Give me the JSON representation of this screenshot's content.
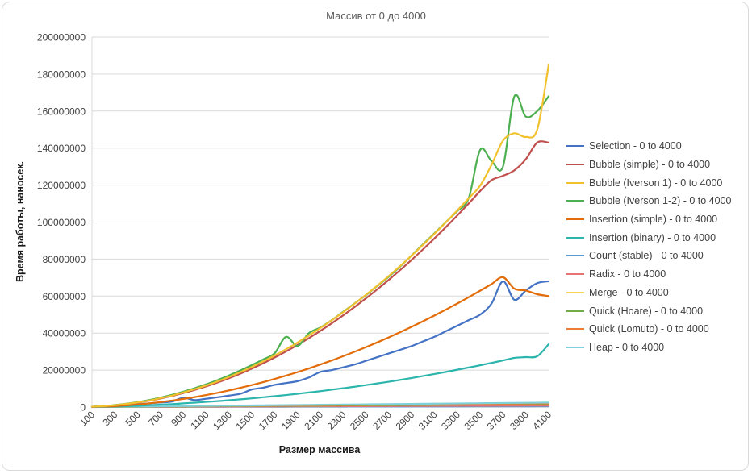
{
  "chart_data": {
    "type": "line",
    "title": "Массив от 0 до 4000",
    "xlabel": "Размер массива",
    "ylabel": "Время работы, наносек.",
    "ylim": [
      0,
      200000000
    ],
    "y_ticks": [
      "0",
      "20000000",
      "40000000",
      "60000000",
      "80000000",
      "100000000",
      "120000000",
      "140000000",
      "160000000",
      "180000000",
      "200000000"
    ],
    "x_ticks": [
      "100",
      "300",
      "500",
      "700",
      "900",
      "1100",
      "1300",
      "1500",
      "1700",
      "1900",
      "2100",
      "2300",
      "2500",
      "2700",
      "2900",
      "3100",
      "3300",
      "3500",
      "3700",
      "3900",
      "4100"
    ],
    "x": [
      100,
      200,
      300,
      400,
      500,
      600,
      700,
      800,
      900,
      1000,
      1100,
      1200,
      1300,
      1400,
      1500,
      1600,
      1700,
      1800,
      1900,
      2000,
      2100,
      2200,
      2300,
      2400,
      2500,
      2600,
      2700,
      2800,
      2900,
      3000,
      3100,
      3200,
      3300,
      3400,
      3500,
      3600,
      3700,
      3800,
      3900,
      4000,
      4100
    ],
    "legend_position": "right",
    "grid": true,
    "series": [
      {
        "name": "Selection - 0 to 4000",
        "color": "#4472c4",
        "values": [
          100000,
          300000,
          700000,
          1100000,
          1500000,
          2000000,
          2500000,
          3000000,
          5000000,
          3800000,
          4500000,
          5300000,
          6200000,
          7200000,
          9500000,
          10500000,
          12000000,
          13000000,
          14000000,
          16000000,
          19000000,
          20000000,
          21500000,
          23000000,
          25000000,
          27000000,
          29000000,
          31000000,
          33000000,
          35500000,
          38000000,
          41000000,
          44000000,
          47000000,
          50000000,
          56000000,
          68000000,
          58000000,
          63000000,
          67000000,
          68000000
        ]
      },
      {
        "name": "Bubble (simple) - 0 to 4000",
        "color": "#c0504d",
        "values": [
          200000,
          500000,
          1000000,
          1600000,
          2400000,
          3400000,
          4600000,
          6000000,
          7600000,
          9300000,
          11200000,
          13300000,
          15600000,
          18100000,
          20800000,
          23700000,
          26800000,
          30100000,
          33600000,
          37300000,
          41200000,
          45300000,
          49600000,
          54100000,
          58800000,
          63700000,
          68800000,
          74100000,
          79600000,
          85300000,
          91200000,
          97300000,
          103600000,
          110100000,
          116800000,
          122700000,
          125000000,
          128000000,
          134000000,
          143000000,
          143000000
        ]
      },
      {
        "name": "Bubble (Iverson 1) - 0 to 4000",
        "color": "#f2c12e",
        "values": [
          200000,
          500000,
          1000000,
          1700000,
          2500000,
          3500000,
          4800000,
          6200000,
          7900000,
          9700000,
          11700000,
          13900000,
          16300000,
          18900000,
          21700000,
          24700000,
          27900000,
          31300000,
          34900000,
          38700000,
          42700000,
          46900000,
          51300000,
          55900000,
          60700000,
          65700000,
          70900000,
          76300000,
          81900000,
          87700000,
          93700000,
          99900000,
          106300000,
          112900000,
          119700000,
          131000000,
          144000000,
          148000000,
          146000000,
          150000000,
          185000000
        ]
      },
      {
        "name": "Bubble (Iverson 1-2) - 0 to 4000",
        "color": "#4caf50",
        "values": [
          200000,
          500000,
          1100000,
          1800000,
          2700000,
          3800000,
          5100000,
          6600000,
          8300000,
          10200000,
          12300000,
          14600000,
          17100000,
          19800000,
          22700000,
          25800000,
          29100000,
          38000000,
          33000000,
          40000000,
          43000000,
          47000000,
          51500000,
          56000000,
          60500000,
          65500000,
          70500000,
          76000000,
          82000000,
          88000000,
          94000000,
          100000000,
          106000000,
          113000000,
          139000000,
          133000000,
          130000000,
          168000000,
          157000000,
          160000000,
          168000000
        ]
      },
      {
        "name": "Insertion (simple) - 0 to 4000",
        "color": "#e36c09",
        "values": [
          100000,
          250000,
          500000,
          900000,
          1400000,
          2000000,
          2700000,
          3500000,
          4400000,
          5400000,
          6500000,
          7700000,
          9000000,
          10400000,
          11900000,
          13500000,
          15200000,
          17000000,
          18900000,
          20900000,
          23000000,
          25200000,
          27500000,
          29900000,
          32400000,
          35000000,
          37700000,
          40500000,
          43400000,
          46400000,
          49500000,
          52700000,
          56000000,
          59400000,
          62900000,
          66500000,
          70200000,
          64000000,
          63000000,
          61000000,
          60000000
        ]
      },
      {
        "name": "Insertion (binary) - 0 to 4000",
        "color": "#2bb5ad",
        "values": [
          50000,
          150000,
          300000,
          500000,
          700000,
          1000000,
          1300000,
          1600000,
          2000000,
          2400000,
          2800000,
          3200000,
          3700000,
          4200000,
          4700000,
          5300000,
          5900000,
          6500000,
          7200000,
          7900000,
          8600000,
          9400000,
          10200000,
          11000000,
          11900000,
          12800000,
          13700000,
          14700000,
          15700000,
          16800000,
          17900000,
          19000000,
          20200000,
          21400000,
          22600000,
          23900000,
          25200000,
          26600000,
          27000000,
          27500000,
          34000000
        ]
      },
      {
        "name": "Count (stable) - 0 to 4000",
        "color": "#5b9bd5",
        "values": [
          10000,
          20000,
          30000,
          40000,
          50000,
          60000,
          70000,
          80000,
          90000,
          100000,
          110000,
          120000,
          130000,
          140000,
          150000,
          160000,
          170000,
          180000,
          190000,
          200000,
          210000,
          220000,
          230000,
          240000,
          250000,
          260000,
          270000,
          280000,
          290000,
          300000,
          310000,
          320000,
          330000,
          340000,
          350000,
          360000,
          370000,
          380000,
          390000,
          400000,
          410000
        ]
      },
      {
        "name": "Radix - 0 to 4000",
        "color": "#e57373",
        "values": [
          20000,
          40000,
          60000,
          80000,
          100000,
          120000,
          140000,
          160000,
          180000,
          200000,
          220000,
          240000,
          260000,
          280000,
          300000,
          320000,
          340000,
          360000,
          380000,
          400000,
          420000,
          440000,
          460000,
          480000,
          500000,
          520000,
          540000,
          560000,
          580000,
          600000,
          620000,
          640000,
          660000,
          680000,
          700000,
          720000,
          740000,
          760000,
          780000,
          800000,
          820000
        ]
      },
      {
        "name": "Merge - 0 to 4000",
        "color": "#f6d55c",
        "values": [
          30000,
          70000,
          110000,
          150000,
          190000,
          230000,
          270000,
          310000,
          350000,
          390000,
          430000,
          470000,
          510000,
          550000,
          590000,
          630000,
          670000,
          710000,
          750000,
          790000,
          830000,
          870000,
          910000,
          950000,
          990000,
          1030000,
          1070000,
          1110000,
          1150000,
          1190000,
          1230000,
          1270000,
          1310000,
          1350000,
          1390000,
          1430000,
          1470000,
          1510000,
          1550000,
          1590000,
          1630000
        ]
      },
      {
        "name": "Quick (Hoare) - 0 to 4000",
        "color": "#70ad47",
        "values": [
          30000,
          60000,
          100000,
          140000,
          180000,
          220000,
          260000,
          300000,
          340000,
          380000,
          420000,
          460000,
          500000,
          540000,
          580000,
          620000,
          660000,
          700000,
          740000,
          780000,
          820000,
          860000,
          900000,
          940000,
          980000,
          1020000,
          1060000,
          1100000,
          1140000,
          1180000,
          1220000,
          1260000,
          1300000,
          1340000,
          1380000,
          1420000,
          1460000,
          1500000,
          1540000,
          1580000,
          1620000
        ]
      },
      {
        "name": "Quick (Lomuto) - 0 to 4000",
        "color": "#ed7d31",
        "values": [
          40000,
          80000,
          130000,
          180000,
          230000,
          280000,
          330000,
          380000,
          430000,
          480000,
          530000,
          580000,
          630000,
          680000,
          730000,
          780000,
          830000,
          880000,
          930000,
          980000,
          1030000,
          1080000,
          1130000,
          1180000,
          1230000,
          1280000,
          1330000,
          1380000,
          1430000,
          1480000,
          1530000,
          1580000,
          1630000,
          1680000,
          1730000,
          1780000,
          1830000,
          1880000,
          1930000,
          1980000,
          2030000
        ]
      },
      {
        "name": "Heap - 0 to 4000",
        "color": "#7fd1d9",
        "values": [
          50000,
          100000,
          160000,
          220000,
          280000,
          340000,
          400000,
          460000,
          520000,
          580000,
          640000,
          700000,
          760000,
          820000,
          880000,
          940000,
          1000000,
          1060000,
          1120000,
          1180000,
          1240000,
          1300000,
          1360000,
          1420000,
          1480000,
          1540000,
          1600000,
          1660000,
          1720000,
          1780000,
          1840000,
          1900000,
          1960000,
          2020000,
          2080000,
          2140000,
          2200000,
          2260000,
          2320000,
          2380000,
          2440000
        ]
      }
    ]
  }
}
